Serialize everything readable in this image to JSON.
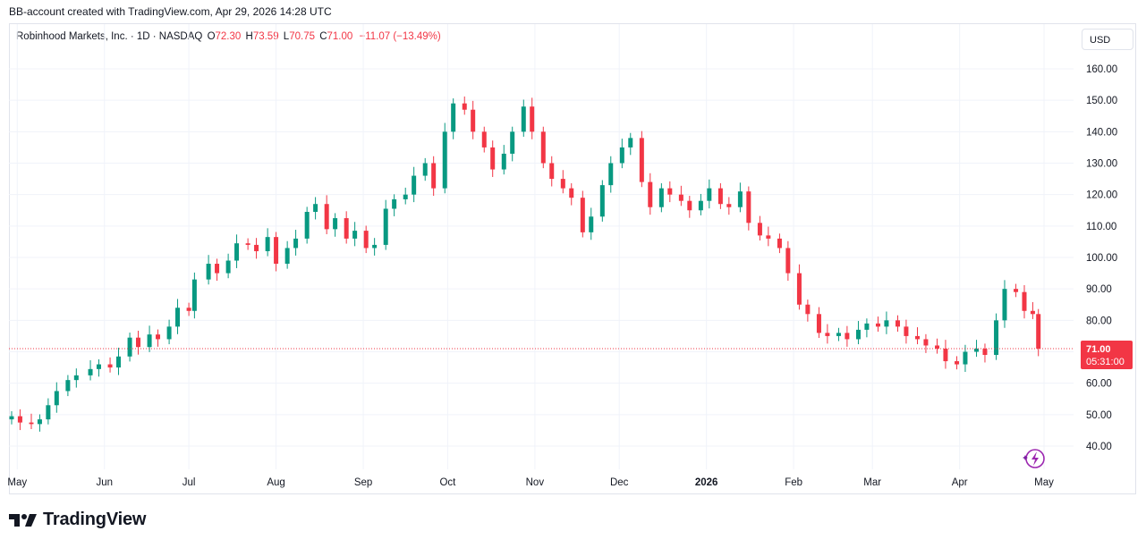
{
  "header": {
    "text": "BB-account created with TradingView.com, Apr 29, 2026 14:28 UTC"
  },
  "legend": {
    "name": "Robinhood Markets, Inc. · 1D · NASDAQ",
    "o_label": "O",
    "o_value": "72.30",
    "h_label": "H",
    "h_value": "73.59",
    "l_label": "L",
    "l_value": "70.75",
    "c_label": "C",
    "c_value": "71.00",
    "change": "−11.07 (−13.49%)"
  },
  "currency_button": "USD",
  "price_label": {
    "price": "71.00",
    "countdown": "05:31:00"
  },
  "footer": {
    "brand": "TradingView"
  },
  "colors": {
    "up": "#089981",
    "down": "#f23645",
    "grid": "#f0f3fa",
    "axis_text": "#131722"
  },
  "chart_data": {
    "type": "candlestick",
    "title": "Robinhood Markets, Inc. · 1D · NASDAQ",
    "ylim": [
      35,
      165
    ],
    "y_ticks": [
      "160.00",
      "150.00",
      "140.00",
      "130.00",
      "120.00",
      "110.00",
      "100.00",
      "90.00",
      "80.00",
      "70.00",
      "60.00",
      "50.00",
      "40.00"
    ],
    "x_ticks": [
      {
        "label": "May",
        "date": "2025-05-01"
      },
      {
        "label": "Jun",
        "date": "2025-06-01"
      },
      {
        "label": "Jul",
        "date": "2025-07-01"
      },
      {
        "label": "Aug",
        "date": "2025-08-01"
      },
      {
        "label": "Sep",
        "date": "2025-09-01"
      },
      {
        "label": "Oct",
        "date": "2025-10-01"
      },
      {
        "label": "Nov",
        "date": "2025-11-01"
      },
      {
        "label": "Dec",
        "date": "2025-12-01"
      },
      {
        "label": "2026",
        "date": "2026-01-01"
      },
      {
        "label": "Feb",
        "date": "2026-02-01"
      },
      {
        "label": "Mar",
        "date": "2026-03-01"
      },
      {
        "label": "Apr",
        "date": "2026-04-01"
      },
      {
        "label": "May",
        "date": "2026-05-01"
      }
    ],
    "last_price": 71.0,
    "grid": true,
    "closes": [
      [
        "2025-04-29",
        49.5
      ],
      [
        "2025-05-02",
        47.5
      ],
      [
        "2025-05-06",
        47.0
      ],
      [
        "2025-05-09",
        48.5
      ],
      [
        "2025-05-12",
        53.0
      ],
      [
        "2025-05-15",
        57.5
      ],
      [
        "2025-05-19",
        61.0
      ],
      [
        "2025-05-22",
        62.5
      ],
      [
        "2025-05-27",
        64.5
      ],
      [
        "2025-05-30",
        66.0
      ],
      [
        "2025-06-03",
        65.0
      ],
      [
        "2025-06-06",
        68.5
      ],
      [
        "2025-06-10",
        74.5
      ],
      [
        "2025-06-13",
        71.5
      ],
      [
        "2025-06-17",
        75.5
      ],
      [
        "2025-06-20",
        74.0
      ],
      [
        "2025-06-24",
        78.0
      ],
      [
        "2025-06-27",
        84.0
      ],
      [
        "2025-07-01",
        83.0
      ],
      [
        "2025-07-03",
        93.0
      ],
      [
        "2025-07-08",
        98.0
      ],
      [
        "2025-07-11",
        95.0
      ],
      [
        "2025-07-15",
        99.0
      ],
      [
        "2025-07-18",
        104.5
      ],
      [
        "2025-07-22",
        104.0
      ],
      [
        "2025-07-25",
        102.0
      ],
      [
        "2025-07-29",
        106.5
      ],
      [
        "2025-08-01",
        98.0
      ],
      [
        "2025-08-05",
        103.0
      ],
      [
        "2025-08-08",
        106.0
      ],
      [
        "2025-08-12",
        114.5
      ],
      [
        "2025-08-15",
        117.0
      ],
      [
        "2025-08-19",
        109.0
      ],
      [
        "2025-08-22",
        112.5
      ],
      [
        "2025-08-26",
        106.0
      ],
      [
        "2025-08-29",
        108.5
      ],
      [
        "2025-09-02",
        103.0
      ],
      [
        "2025-09-05",
        104.0
      ],
      [
        "2025-09-09",
        115.5
      ],
      [
        "2025-09-12",
        118.5
      ],
      [
        "2025-09-16",
        120.0
      ],
      [
        "2025-09-19",
        126.0
      ],
      [
        "2025-09-23",
        130.0
      ],
      [
        "2025-09-26",
        122.0
      ],
      [
        "2025-09-30",
        140.0
      ],
      [
        "2025-10-03",
        149.0
      ],
      [
        "2025-10-07",
        147.0
      ],
      [
        "2025-10-10",
        140.0
      ],
      [
        "2025-10-14",
        135.0
      ],
      [
        "2025-10-17",
        128.0
      ],
      [
        "2025-10-21",
        133.0
      ],
      [
        "2025-10-24",
        140.0
      ],
      [
        "2025-10-28",
        148.0
      ],
      [
        "2025-10-31",
        140.0
      ],
      [
        "2025-11-04",
        130.0
      ],
      [
        "2025-11-07",
        125.0
      ],
      [
        "2025-11-11",
        122.0
      ],
      [
        "2025-11-14",
        119.0
      ],
      [
        "2025-11-18",
        108.0
      ],
      [
        "2025-11-21",
        113.0
      ],
      [
        "2025-11-25",
        123.0
      ],
      [
        "2025-11-28",
        130.0
      ],
      [
        "2025-12-02",
        135.0
      ],
      [
        "2025-12-05",
        138.0
      ],
      [
        "2025-12-09",
        124.0
      ],
      [
        "2025-12-12",
        116.0
      ],
      [
        "2025-12-16",
        122.0
      ],
      [
        "2025-12-19",
        120.0
      ],
      [
        "2025-12-23",
        118.0
      ],
      [
        "2025-12-26",
        115.0
      ],
      [
        "2025-12-30",
        118.0
      ],
      [
        "2026-01-02",
        122.0
      ],
      [
        "2026-01-06",
        117.0
      ],
      [
        "2026-01-09",
        116.0
      ],
      [
        "2026-01-13",
        121.0
      ],
      [
        "2026-01-16",
        111.0
      ],
      [
        "2026-01-20",
        107.0
      ],
      [
        "2026-01-23",
        106.0
      ],
      [
        "2026-01-27",
        103.0
      ],
      [
        "2026-01-30",
        95.0
      ],
      [
        "2026-02-03",
        85.0
      ],
      [
        "2026-02-06",
        82.0
      ],
      [
        "2026-02-10",
        76.0
      ],
      [
        "2026-02-13",
        75.0
      ],
      [
        "2026-02-17",
        76.0
      ],
      [
        "2026-02-20",
        74.0
      ],
      [
        "2026-02-24",
        77.0
      ],
      [
        "2026-02-27",
        79.0
      ],
      [
        "2026-03-03",
        78.0
      ],
      [
        "2026-03-06",
        80.0
      ],
      [
        "2026-03-10",
        78.0
      ],
      [
        "2026-03-13",
        75.0
      ],
      [
        "2026-03-17",
        74.0
      ],
      [
        "2026-03-20",
        72.0
      ],
      [
        "2026-03-24",
        71.0
      ],
      [
        "2026-03-27",
        67.0
      ],
      [
        "2026-03-31",
        66.0
      ],
      [
        "2026-04-03",
        70.0
      ],
      [
        "2026-04-07",
        71.0
      ],
      [
        "2026-04-10",
        69.0
      ],
      [
        "2026-04-14",
        80.0
      ],
      [
        "2026-04-17",
        90.0
      ],
      [
        "2026-04-21",
        89.0
      ],
      [
        "2026-04-24",
        83.0
      ],
      [
        "2026-04-27",
        82.0
      ],
      [
        "2026-04-29",
        71.0
      ]
    ]
  }
}
